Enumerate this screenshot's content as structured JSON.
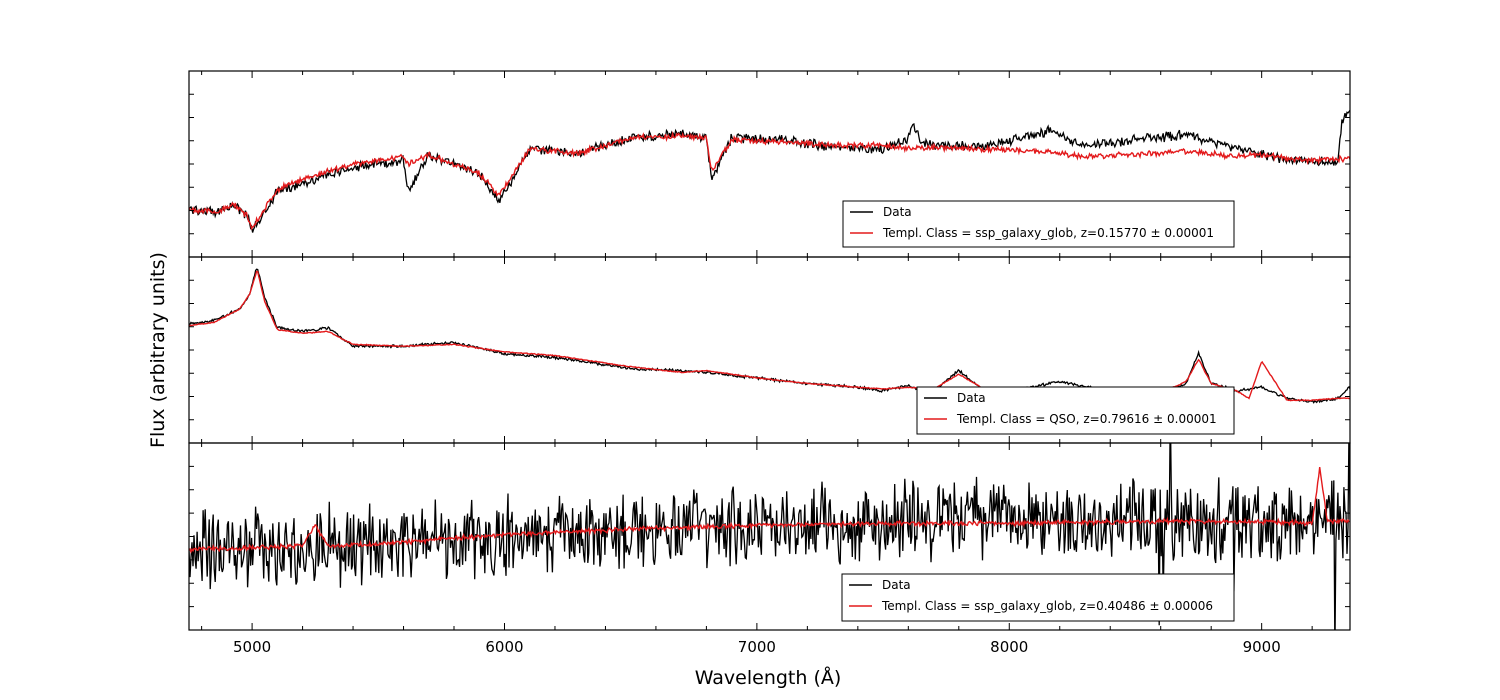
{
  "figure": {
    "xlabel": "Wavelength (Å)",
    "ylabel": "Flux (arbitrary units)"
  },
  "colors": {
    "data": "#000000",
    "template": "#e31a1c"
  },
  "chart_data": [
    {
      "type": "line",
      "xlim": [
        4750,
        9350
      ],
      "ylim": [
        0,
        1
      ],
      "xticks": [
        5000,
        6000,
        7000,
        8000,
        9000
      ],
      "xticklabels": [
        "5000",
        "6000",
        "7000",
        "8000",
        "9000"
      ],
      "legend": "lower-right",
      "series": [
        {
          "name": "Data",
          "color": "#000000",
          "noise": 0.02,
          "x": [
            4750,
            4850,
            4930,
            4980,
            5000,
            5100,
            5200,
            5400,
            5600,
            5620,
            5700,
            5900,
            5980,
            6100,
            6300,
            6500,
            6700,
            6800,
            6820,
            6900,
            7100,
            7300,
            7500,
            7600,
            7620,
            7650,
            7700,
            7900,
            8100,
            8150,
            8300,
            8500,
            8700,
            8900,
            9000,
            9100,
            9200,
            9300,
            9320,
            9350
          ],
          "y": [
            0.26,
            0.24,
            0.28,
            0.22,
            0.14,
            0.35,
            0.4,
            0.48,
            0.52,
            0.35,
            0.55,
            0.45,
            0.3,
            0.58,
            0.56,
            0.64,
            0.66,
            0.64,
            0.42,
            0.64,
            0.63,
            0.59,
            0.58,
            0.64,
            0.72,
            0.62,
            0.6,
            0.6,
            0.65,
            0.68,
            0.6,
            0.63,
            0.66,
            0.58,
            0.55,
            0.52,
            0.52,
            0.5,
            0.74,
            0.78
          ]
        },
        {
          "name": "Templ. Class = ssp_galaxy_glob, z=0.15770 ± 0.00001",
          "color": "#e31a1c",
          "noise": 0.012,
          "x": [
            4750,
            4850,
            4930,
            4980,
            5000,
            5100,
            5200,
            5400,
            5600,
            5620,
            5700,
            5900,
            5980,
            6100,
            6300,
            6500,
            6700,
            6800,
            6820,
            6900,
            7100,
            7300,
            7500,
            7600,
            7650,
            7700,
            7900,
            8100,
            8300,
            8500,
            8700,
            8900,
            9000,
            9100,
            9200,
            9300,
            9350
          ],
          "y": [
            0.26,
            0.24,
            0.28,
            0.22,
            0.16,
            0.36,
            0.42,
            0.5,
            0.54,
            0.5,
            0.55,
            0.45,
            0.33,
            0.58,
            0.56,
            0.64,
            0.65,
            0.64,
            0.46,
            0.63,
            0.62,
            0.6,
            0.6,
            0.58,
            0.59,
            0.59,
            0.58,
            0.57,
            0.54,
            0.55,
            0.57,
            0.54,
            0.55,
            0.53,
            0.52,
            0.53,
            0.53
          ]
        }
      ]
    },
    {
      "type": "line",
      "xlim": [
        4750,
        9350
      ],
      "ylim": [
        0,
        1
      ],
      "xticks": [
        5000,
        6000,
        7000,
        8000,
        9000
      ],
      "xticklabels": [
        "5000",
        "6000",
        "7000",
        "8000",
        "9000"
      ],
      "legend": "lower-right",
      "series": [
        {
          "name": "Data",
          "color": "#000000",
          "noise": 0.006,
          "x": [
            4750,
            4850,
            4950,
            4990,
            5020,
            5050,
            5100,
            5200,
            5300,
            5400,
            5600,
            5800,
            6000,
            6200,
            6500,
            6800,
            7000,
            7200,
            7400,
            7500,
            7600,
            7650,
            7700,
            7800,
            7900,
            8000,
            8200,
            8400,
            8600,
            8700,
            8750,
            8800,
            8900,
            9000,
            9100,
            9200,
            9300,
            9350
          ],
          "y": [
            0.64,
            0.66,
            0.72,
            0.8,
            0.95,
            0.78,
            0.62,
            0.6,
            0.62,
            0.52,
            0.52,
            0.54,
            0.48,
            0.46,
            0.4,
            0.38,
            0.35,
            0.32,
            0.3,
            0.28,
            0.31,
            0.28,
            0.28,
            0.39,
            0.28,
            0.28,
            0.33,
            0.28,
            0.26,
            0.32,
            0.48,
            0.32,
            0.28,
            0.3,
            0.24,
            0.22,
            0.24,
            0.3
          ]
        },
        {
          "name": "Templ. Class = QSO, z=0.79616 ± 0.00001",
          "color": "#e31a1c",
          "noise": 0.002,
          "x": [
            4750,
            4850,
            4950,
            4990,
            5020,
            5050,
            5100,
            5200,
            5300,
            5400,
            5600,
            5800,
            6000,
            6200,
            6500,
            6700,
            6800,
            7000,
            7200,
            7400,
            7500,
            7600,
            7700,
            7800,
            7900,
            8000,
            8200,
            8400,
            8600,
            8700,
            8750,
            8800,
            8900,
            8950,
            9000,
            9100,
            9200,
            9300,
            9350
          ],
          "y": [
            0.63,
            0.65,
            0.72,
            0.8,
            0.93,
            0.76,
            0.61,
            0.59,
            0.6,
            0.53,
            0.52,
            0.53,
            0.49,
            0.47,
            0.41,
            0.38,
            0.39,
            0.35,
            0.32,
            0.3,
            0.29,
            0.3,
            0.29,
            0.37,
            0.29,
            0.28,
            0.29,
            0.28,
            0.27,
            0.33,
            0.45,
            0.32,
            0.28,
            0.24,
            0.44,
            0.23,
            0.23,
            0.24,
            0.24
          ]
        }
      ]
    },
    {
      "type": "line",
      "xlim": [
        4750,
        9350
      ],
      "ylim": [
        0,
        1
      ],
      "xticks": [
        5000,
        6000,
        7000,
        8000,
        9000
      ],
      "xticklabels": [
        "5000",
        "6000",
        "7000",
        "8000",
        "9000"
      ],
      "legend": "lower-right",
      "series": [
        {
          "name": "Data",
          "color": "#000000",
          "noise": 0.16,
          "x": [
            4750,
            5000,
            5500,
            6000,
            6500,
            7000,
            7500,
            8000,
            8500,
            9000,
            9200,
            9350
          ],
          "y": [
            0.42,
            0.43,
            0.46,
            0.5,
            0.53,
            0.56,
            0.58,
            0.59,
            0.58,
            0.58,
            0.58,
            0.58
          ]
        },
        {
          "name": "Templ. Class = ssp_galaxy_glob, z=0.40486 ± 0.00006",
          "color": "#e31a1c",
          "noise": 0.01,
          "x": [
            4750,
            5000,
            5200,
            5250,
            5300,
            5500,
            6000,
            6500,
            7000,
            7500,
            8000,
            8500,
            9000,
            9200,
            9230,
            9260,
            9350
          ],
          "y": [
            0.43,
            0.44,
            0.45,
            0.56,
            0.45,
            0.46,
            0.51,
            0.54,
            0.56,
            0.57,
            0.57,
            0.58,
            0.58,
            0.57,
            0.86,
            0.58,
            0.58
          ]
        }
      ]
    }
  ]
}
